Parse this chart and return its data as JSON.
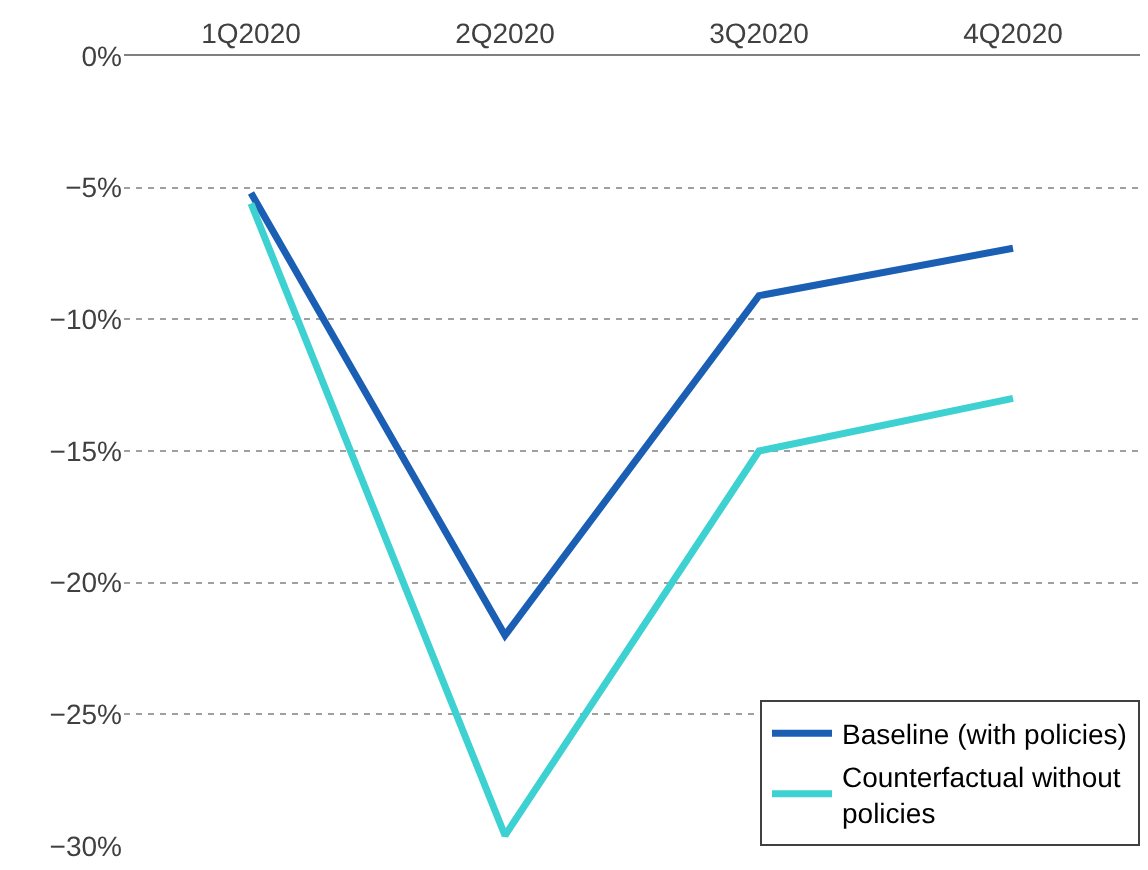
{
  "chart_data": {
    "type": "line",
    "categories": [
      "1Q2020",
      "2Q2020",
      "3Q2020",
      "4Q2020"
    ],
    "series": [
      {
        "name": "Baseline (with policies)",
        "color": "#1a5fb4",
        "values": [
          -5.2,
          -22.0,
          -9.1,
          -7.3
        ]
      },
      {
        "name": "Counterfactual without policies",
        "color": "#3dd1d1",
        "values": [
          -5.6,
          -29.6,
          -15.0,
          -13.0
        ]
      }
    ],
    "ylim": [
      -30,
      0
    ],
    "yticks": [
      {
        "value": 0,
        "label": "0%"
      },
      {
        "value": -5,
        "label": "−5%"
      },
      {
        "value": -10,
        "label": "−10%"
      },
      {
        "value": -15,
        "label": "−15%"
      },
      {
        "value": -20,
        "label": "−20%"
      },
      {
        "value": -25,
        "label": "−25%"
      },
      {
        "value": -30,
        "label": "−30%"
      }
    ],
    "grid": "y",
    "legend": "bottom right",
    "marker": "none",
    "line_style": "solid"
  }
}
